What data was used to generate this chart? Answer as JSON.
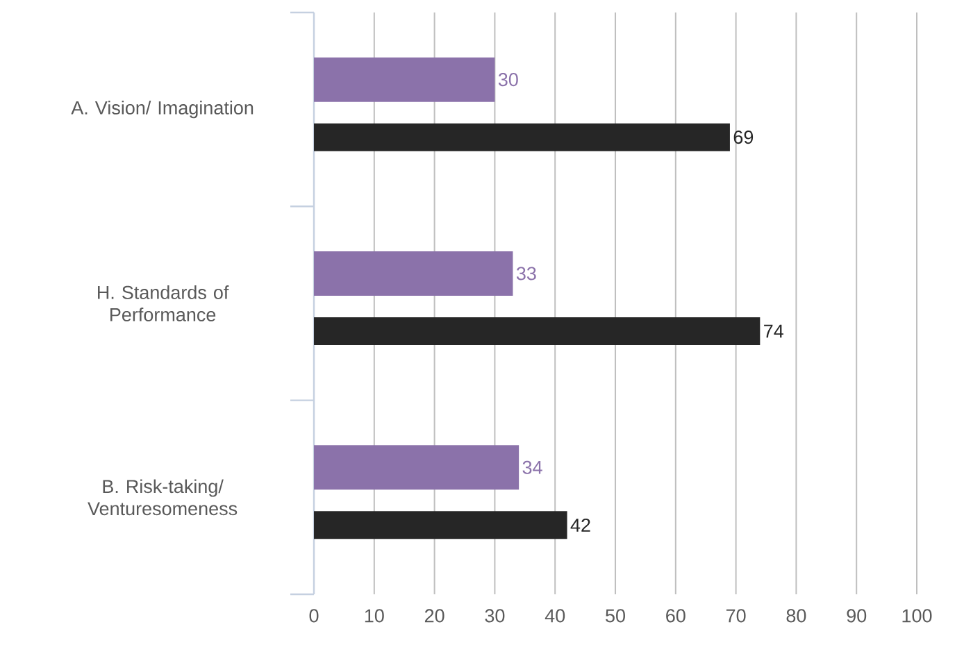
{
  "chart_data": {
    "type": "bar",
    "orientation": "horizontal",
    "categories": [
      "A. Vision/ Imagination",
      "H. Standards of Performance",
      "B. Risk-taking/ Venturesomeness"
    ],
    "series": [
      {
        "color": "#8b72aa",
        "values": [
          30,
          33,
          34
        ]
      },
      {
        "color": "#262626",
        "values": [
          69,
          74,
          42
        ]
      }
    ],
    "xlim": [
      0,
      100
    ],
    "xticks": [
      0,
      10,
      20,
      30,
      40,
      50,
      60,
      70,
      80,
      90,
      100
    ],
    "grid": "x",
    "data_labels": true
  }
}
